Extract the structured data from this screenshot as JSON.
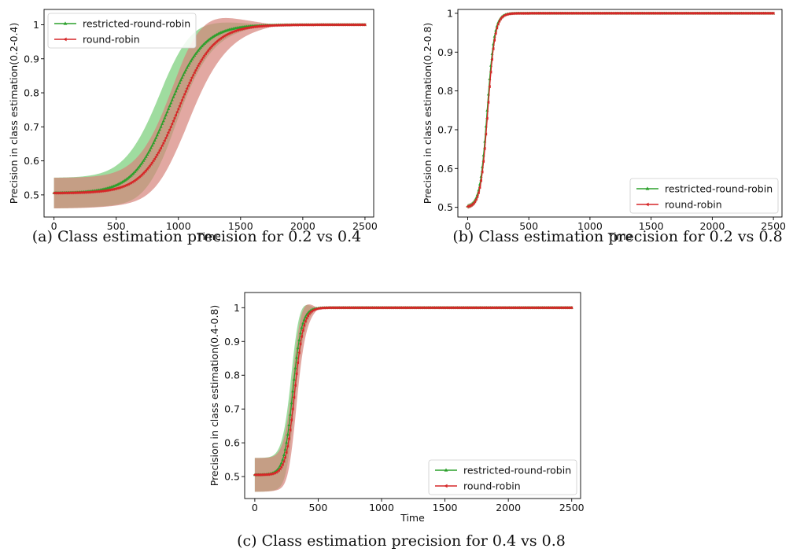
{
  "chart_data": [
    {
      "panel": "a",
      "type": "line",
      "caption": "(a)  Class estimation precision for 0.2 vs 0.4",
      "xlabel": "Time",
      "ylabel": "Precision in class estimation(0.2-0.4)",
      "xlim": [
        -80,
        2570
      ],
      "ylim": [
        0.435,
        1.045
      ],
      "xticks": [
        0,
        500,
        1000,
        1500,
        2000,
        2500
      ],
      "yticks": [
        0.5,
        0.6,
        0.7,
        0.8,
        0.9,
        1.0
      ],
      "grid": false,
      "legend_position": "upper left",
      "series": [
        {
          "name": "restricted-round-robin",
          "color": "#2ca02c",
          "band_color": "#7fd07f",
          "marker": "^",
          "curve": {
            "start": 0.505,
            "end": 1.0,
            "mid": 920,
            "width": 140
          },
          "band": {
            "base": 0.045,
            "peak_extra": 0.06,
            "peak_at": 900,
            "peak_width": 320,
            "converge_at": 1700
          }
        },
        {
          "name": "round-robin",
          "color": "#d62728",
          "band_color": "#d5837b",
          "marker": "<",
          "curve": {
            "start": 0.505,
            "end": 1.0,
            "mid": 1000,
            "width": 140
          },
          "band": {
            "base": 0.045,
            "peak_extra": 0.065,
            "peak_at": 1050,
            "peak_width": 340,
            "converge_at": 1800
          }
        }
      ],
      "x_range": [
        0,
        2500
      ]
    },
    {
      "panel": "b",
      "type": "line",
      "caption": "(b)  Class estimation precision for 0.2 vs 0.8",
      "xlabel": "Time",
      "ylabel": "Precision in class estimation(0.2-0.8)",
      "xlim": [
        -80,
        2570
      ],
      "ylim": [
        0.475,
        1.01
      ],
      "xticks": [
        0,
        500,
        1000,
        1500,
        2000,
        2500
      ],
      "yticks": [
        0.5,
        0.6,
        0.7,
        0.8,
        0.9,
        1.0
      ],
      "grid": false,
      "legend_position": "lower right",
      "series": [
        {
          "name": "restricted-round-robin",
          "color": "#2ca02c",
          "band_color": "#7fd07f",
          "marker": "^",
          "curve": {
            "start": 0.5,
            "end": 1.0,
            "mid": 160,
            "width": 30
          },
          "band": {
            "base": 0.006,
            "peak_extra": 0.01,
            "peak_at": 160,
            "peak_width": 60,
            "converge_at": 300
          }
        },
        {
          "name": "round-robin",
          "color": "#d62728",
          "band_color": "#d5837b",
          "marker": "<",
          "curve": {
            "start": 0.5,
            "end": 1.0,
            "mid": 165,
            "width": 30
          },
          "band": {
            "base": 0.006,
            "peak_extra": 0.012,
            "peak_at": 165,
            "peak_width": 60,
            "converge_at": 300
          }
        }
      ],
      "x_range": [
        0,
        2500
      ]
    },
    {
      "panel": "c",
      "type": "line",
      "caption": "(c)  Class estimation precision for 0.4 vs 0.8",
      "xlabel": "Time",
      "ylabel": "Precision in class estimation(0.4-0.8)",
      "xlim": [
        -80,
        2570
      ],
      "ylim": [
        0.435,
        1.045
      ],
      "xticks": [
        0,
        500,
        1000,
        1500,
        2000,
        2500
      ],
      "yticks": [
        0.5,
        0.6,
        0.7,
        0.8,
        0.9,
        1.0
      ],
      "grid": false,
      "legend_position": "lower right",
      "series": [
        {
          "name": "restricted-round-robin",
          "color": "#2ca02c",
          "band_color": "#7fd07f",
          "marker": "^",
          "curve": {
            "start": 0.505,
            "end": 1.0,
            "mid": 300,
            "width": 35
          },
          "band": {
            "base": 0.05,
            "peak_extra": 0.04,
            "peak_at": 300,
            "peak_width": 90,
            "converge_at": 480
          }
        },
        {
          "name": "round-robin",
          "color": "#d62728",
          "band_color": "#d5837b",
          "marker": "<",
          "curve": {
            "start": 0.505,
            "end": 1.0,
            "mid": 315,
            "width": 35
          },
          "band": {
            "base": 0.05,
            "peak_extra": 0.045,
            "peak_at": 315,
            "peak_width": 90,
            "converge_at": 500
          }
        }
      ],
      "x_range": [
        0,
        2500
      ]
    }
  ]
}
